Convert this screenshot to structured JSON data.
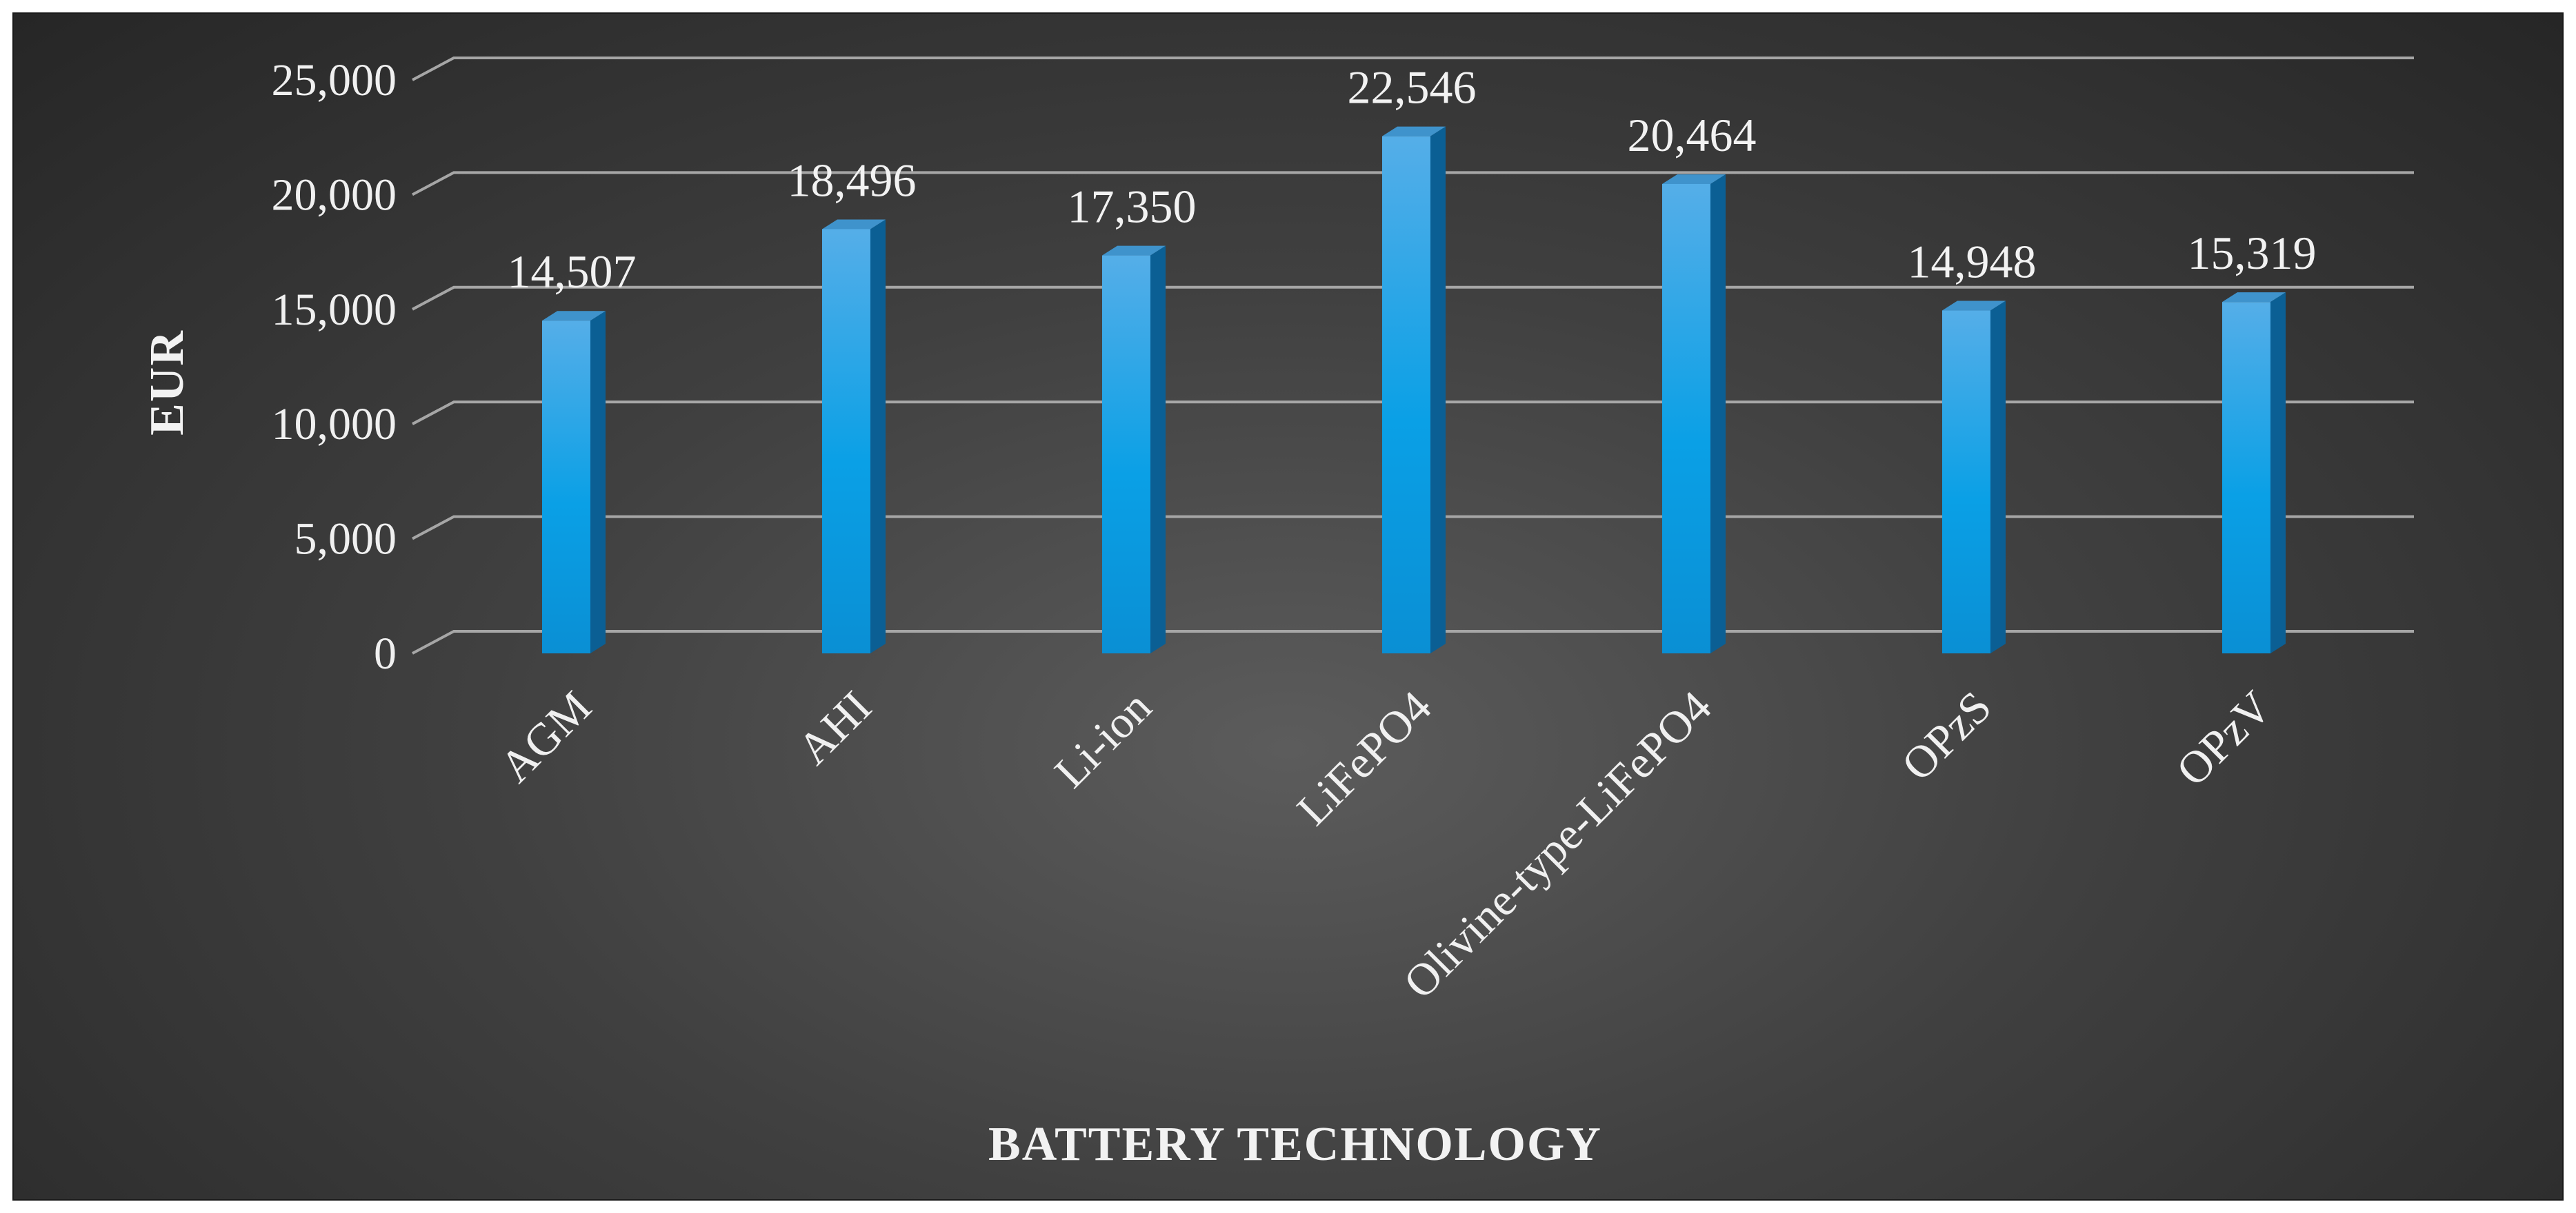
{
  "chart_data": {
    "type": "bar",
    "categories": [
      "AGM",
      "AHI",
      "Li-ion",
      "LiFePO4",
      "Olivine-type-LiFePO4",
      "OPzS",
      "OPzV"
    ],
    "values": [
      14507,
      18496,
      17350,
      22546,
      20464,
      14948,
      15319
    ],
    "data_labels": [
      "14,507",
      "18,496",
      "17,350",
      "22,546",
      "20,464",
      "14,948",
      "15,319"
    ],
    "y_ticks": [
      "0",
      "5,000",
      "10,000",
      "15,000",
      "20,000",
      "25,000"
    ],
    "ylim": [
      0,
      25000
    ],
    "xlabel": "BATTERY TECHNOLOGY",
    "ylabel": "EUR",
    "grid": true,
    "legend": "none",
    "colors": {
      "bar_front_top": "#55aee8",
      "bar_front_bottom": "#0a8fd4",
      "bar_side": "#0b5f94",
      "bar_top": "#3f93cc",
      "gridline": "#a6a6a6"
    }
  }
}
